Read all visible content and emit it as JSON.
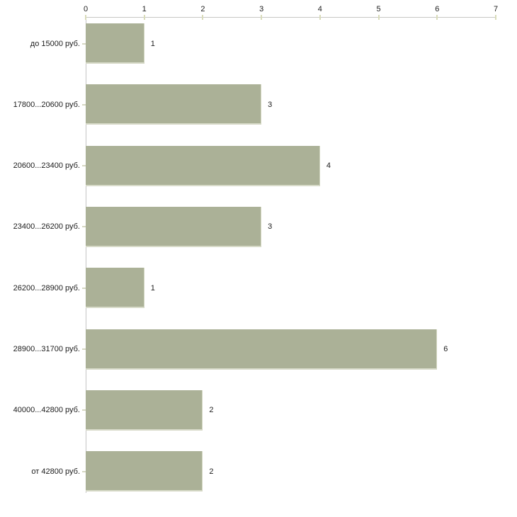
{
  "chart_data": {
    "type": "bar",
    "orientation": "horizontal",
    "title": "",
    "xlabel": "",
    "ylabel": "",
    "categories": [
      "до 15000 руб.",
      "17800...20600 руб.",
      "20600...23400 руб.",
      "23400...26200 руб.",
      "26200...28900 руб.",
      "28900...31700 руб.",
      "40000...42800 руб.",
      "от 42800 руб."
    ],
    "values": [
      1,
      3,
      4,
      3,
      1,
      6,
      2,
      2
    ],
    "value_labels": [
      "1",
      "3",
      "4",
      "3",
      "1",
      "6",
      "2",
      "2"
    ],
    "x_ticks": [
      0,
      1,
      2,
      3,
      4,
      5,
      6,
      7
    ],
    "xlim": [
      0,
      7
    ],
    "grid": false,
    "legend": false,
    "axis_position": "top",
    "colors": {
      "bar_fill": "#abb197",
      "bar_edge": "#d7dac8",
      "axis_line": "#c8c8c4",
      "tick_mark": "#d9dcba",
      "text": "#1c1c1c",
      "background": "#ffffff"
    }
  }
}
